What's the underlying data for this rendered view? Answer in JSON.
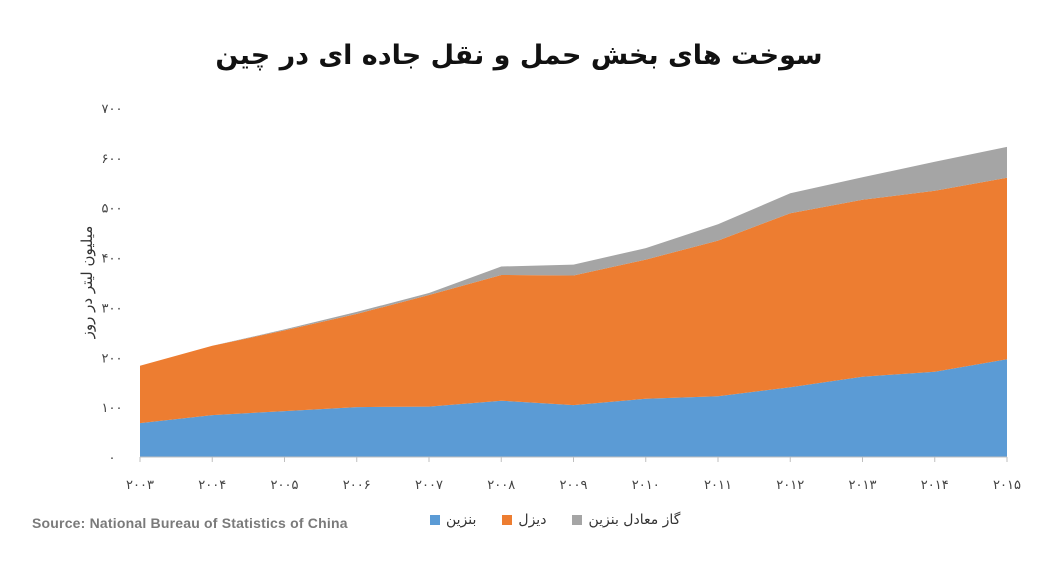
{
  "chart_data": {
    "type": "area",
    "title": "سوخت های بخش حمل و نقل جاده ای در چین",
    "ylabel": "میلیون لیتر در روز",
    "xlabel": "",
    "x": [
      "۲۰۰۳",
      "۲۰۰۴",
      "۲۰۰۵",
      "۲۰۰۶",
      "۲۰۰۷",
      "۲۰۰۸",
      "۲۰۰۹",
      "۲۰۱۰",
      "۲۰۱۱",
      "۲۰۱۲",
      "۲۰۱۳",
      "۲۰۱۴",
      "۲۰۱۵"
    ],
    "ylim": [
      0,
      700
    ],
    "yticks": [
      0,
      100,
      200,
      300,
      400,
      500,
      600,
      700
    ],
    "ytick_labels": [
      "۰",
      "۱۰۰",
      "۲۰۰",
      "۳۰۰",
      "۴۰۰",
      "۵۰۰",
      "۶۰۰",
      "۷۰۰"
    ],
    "stacked": true,
    "grid": false,
    "legend_position": "bottom",
    "series": [
      {
        "name": "بنزین",
        "color": "#5b9bd5",
        "values": [
          68,
          84,
          92,
          100,
          101,
          113,
          104,
          117,
          122,
          140,
          161,
          171,
          196
        ]
      },
      {
        "name": "دیزل",
        "color": "#ed7d31",
        "values": [
          115,
          139,
          162,
          187,
          224,
          252,
          260,
          279,
          312,
          349,
          355,
          363,
          364
        ]
      },
      {
        "name": "گاز معادل بنزین",
        "color": "#a5a5a5",
        "values": [
          0,
          0,
          2,
          4,
          4,
          17,
          22,
          23,
          33,
          40,
          45,
          58,
          62
        ]
      }
    ],
    "source": "Source:  National  Bureau  of  Statistics  of  China"
  }
}
